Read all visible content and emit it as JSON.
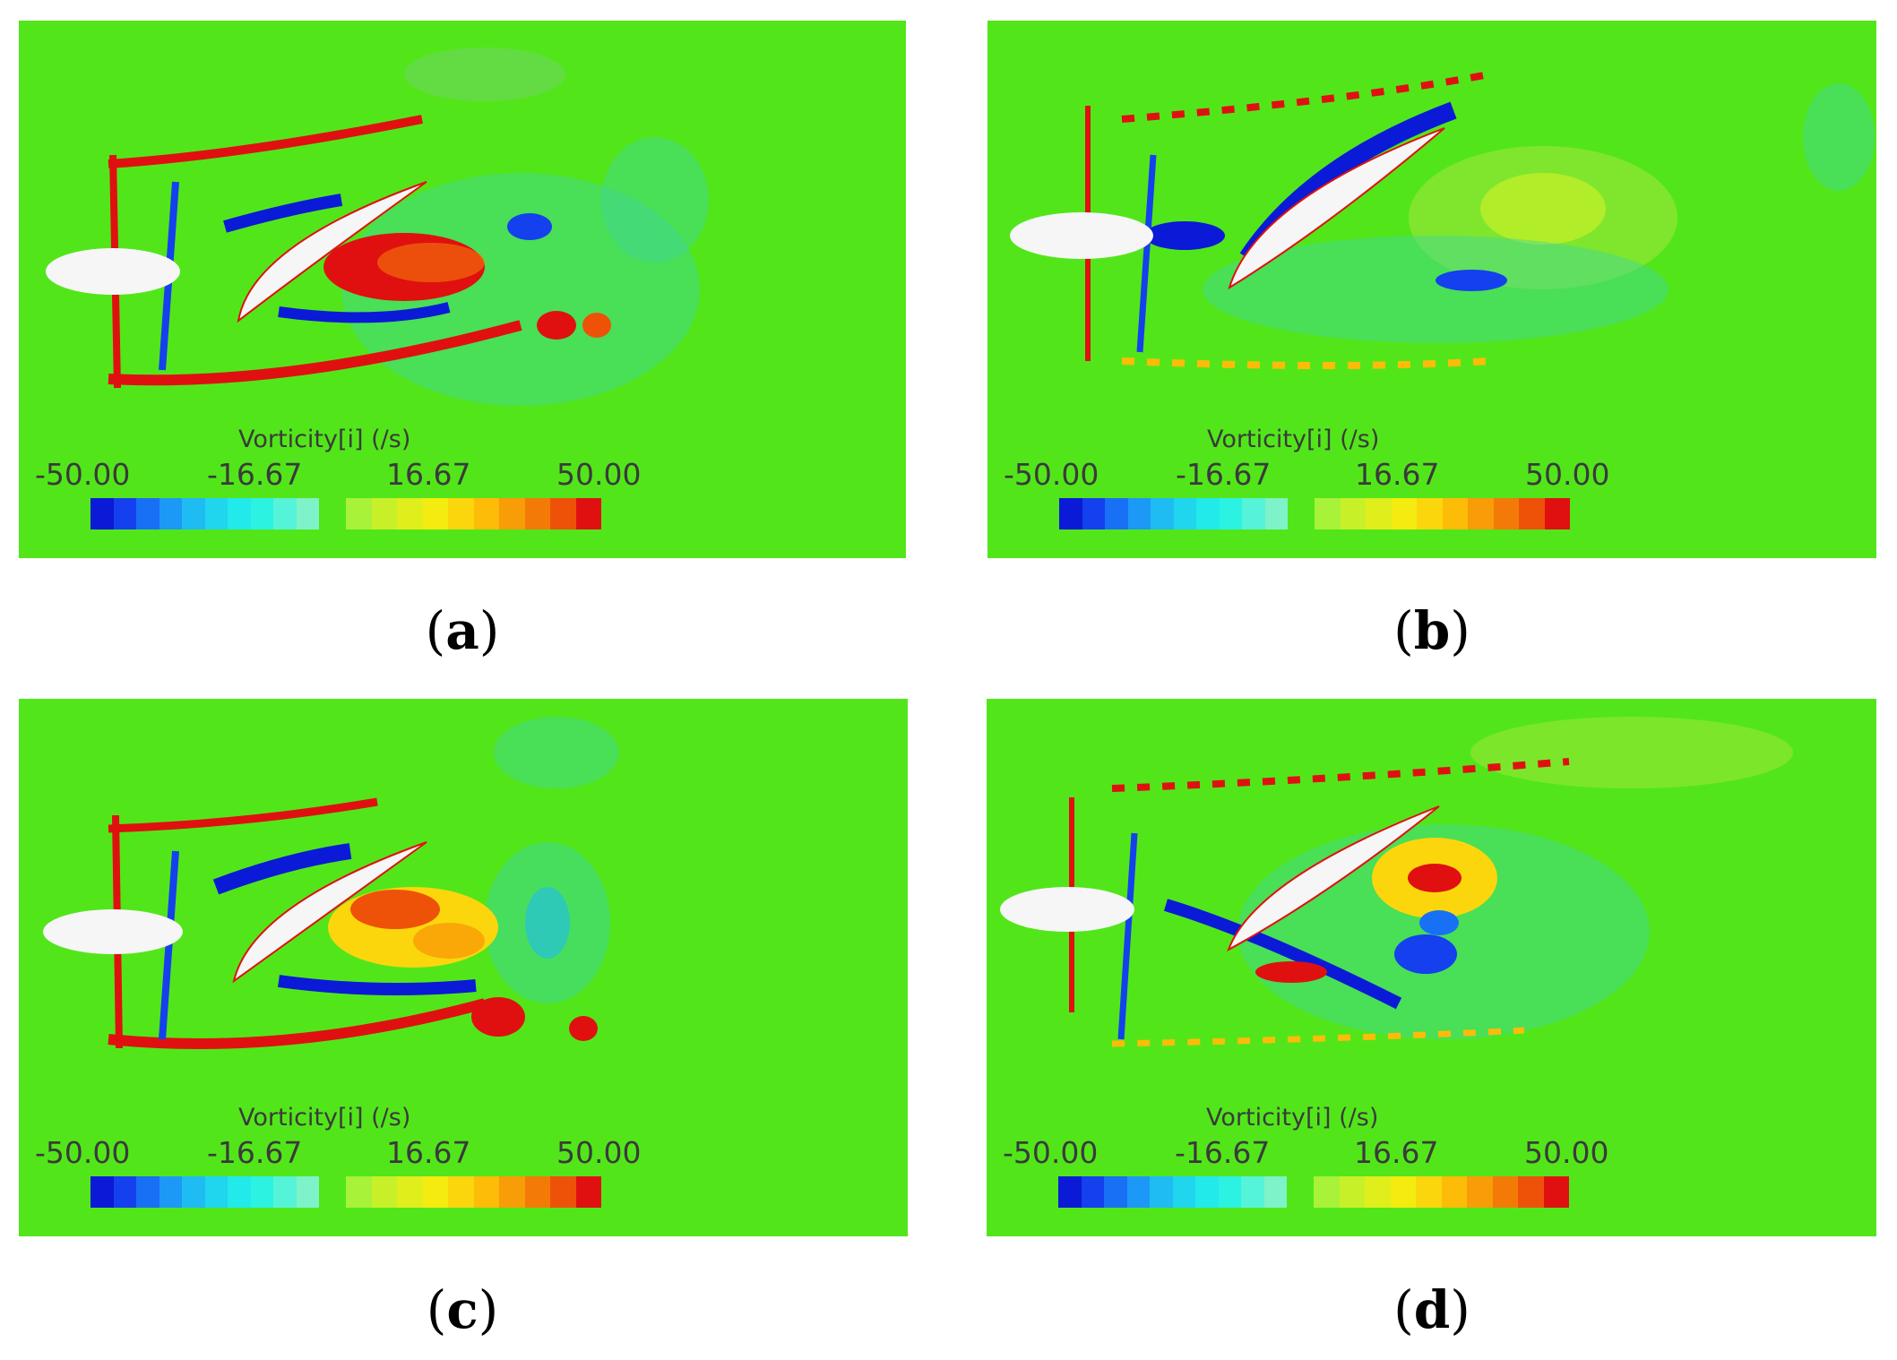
{
  "panels": [
    {
      "caption_letter": "a",
      "colorbar": {
        "title": "Vorticity[i] (/s)",
        "ticks": [
          "-50.00",
          "-16.67",
          "16.67",
          "50.00"
        ]
      }
    },
    {
      "caption_letter": "b",
      "colorbar": {
        "title": "Vorticity[i] (/s)",
        "ticks": [
          "-50.00",
          "-16.67",
          "16.67",
          "50.00"
        ]
      }
    },
    {
      "caption_letter": "c",
      "colorbar": {
        "title": "Vorticity[i] (/s)",
        "ticks": [
          "-50.00",
          "-16.67",
          "16.67",
          "50.00"
        ]
      }
    },
    {
      "caption_letter": "d",
      "colorbar": {
        "title": "Vorticity[i] (/s)",
        "ticks": [
          "-50.00",
          "-16.67",
          "16.67",
          "50.00"
        ]
      }
    }
  ],
  "colors": {
    "background_field": "#52e61a",
    "negative_colorbar": [
      "#0a1ad6",
      "#1440ee",
      "#1870f5",
      "#1c99f7",
      "#1ebcf2",
      "#1fd6ee",
      "#22eaea",
      "#2cf2e2",
      "#55f4d8",
      "#7ef2c8"
    ],
    "positive_colorbar": [
      "#a8f23a",
      "#c8f028",
      "#e0ee1c",
      "#f4ec10",
      "#fcd60c",
      "#fcbc08",
      "#f89c08",
      "#f47a08",
      "#ee5208",
      "#e01010"
    ]
  }
}
